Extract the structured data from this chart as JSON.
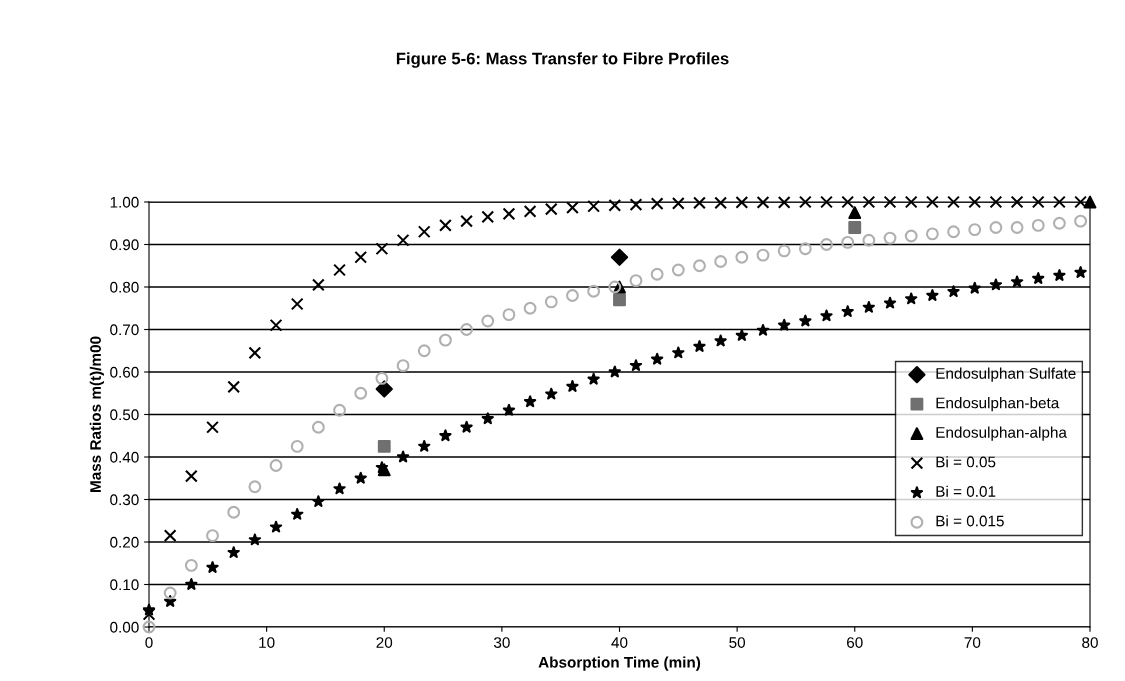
{
  "chart_data": {
    "type": "scatter",
    "title": "Figure 5-6: Mass Transfer to Fibre Profiles",
    "xlabel": "Absorption Time (min)",
    "ylabel": "Mass Ratios m(t)/m00",
    "xlim": [
      0,
      80
    ],
    "xticks": [
      0,
      10,
      20,
      30,
      40,
      50,
      60,
      70,
      80
    ],
    "ylim": [
      0,
      1
    ],
    "yticks": [
      {
        "value": 0,
        "label": "0.00"
      },
      {
        "value": 0.1,
        "label": "0.10"
      },
      {
        "value": 0.2,
        "label": "0.20"
      },
      {
        "value": 0.3,
        "label": "0.30"
      },
      {
        "value": 0.4,
        "label": "0.40"
      },
      {
        "value": 0.5,
        "label": "0.50"
      },
      {
        "value": 0.6,
        "label": "0.60"
      },
      {
        "value": 0.7,
        "label": "0.70"
      },
      {
        "value": 0.8,
        "label": "0.80"
      },
      {
        "value": 0.9,
        "label": "0.90"
      },
      {
        "value": 1,
        "label": "1.00"
      }
    ],
    "grid": "y",
    "legend": "right",
    "series": [
      {
        "name": "Endosulphan Sulfate",
        "color": "#000000",
        "marker": "diamond",
        "x": [
          20,
          40
        ],
        "values": [
          0.56,
          0.87
        ]
      },
      {
        "name": "Endosulphan-beta",
        "color": "#707070",
        "marker": "square",
        "x": [
          20,
          40,
          60
        ],
        "values": [
          0.425,
          0.77,
          0.94
        ]
      },
      {
        "name": "Endosulphan-alpha",
        "color": "#000000",
        "marker": "triangle",
        "x": [
          20,
          40,
          60,
          80
        ],
        "values": [
          0.37,
          0.8,
          0.975,
          1.0
        ]
      },
      {
        "name": "Bi = 0.05",
        "color": "#000000",
        "marker": "cross",
        "x": [
          0,
          1.8,
          3.6,
          5.4,
          7.2,
          9,
          10.8,
          12.6,
          14.4,
          16.2,
          18,
          19.8,
          21.6,
          23.4,
          25.2,
          27,
          28.8,
          30.6,
          32.4,
          34.2,
          36,
          37.8,
          39.6,
          41.4,
          43.2,
          45,
          46.8,
          48.6,
          50.4,
          52.2,
          54,
          55.8,
          57.6,
          59.4,
          61.2,
          63,
          64.8,
          66.6,
          68.4,
          70.2,
          72,
          73.8,
          75.6,
          77.4,
          79.2
        ],
        "values": [
          0.03,
          0.215,
          0.355,
          0.47,
          0.565,
          0.645,
          0.71,
          0.76,
          0.805,
          0.84,
          0.87,
          0.89,
          0.91,
          0.93,
          0.945,
          0.955,
          0.965,
          0.972,
          0.978,
          0.983,
          0.987,
          0.99,
          0.992,
          0.994,
          0.996,
          0.997,
          0.998,
          0.998,
          0.999,
          0.999,
          0.999,
          1.0,
          1.0,
          1.0,
          1.0,
          1.0,
          1.0,
          1.0,
          1.0,
          1.0,
          1.0,
          1.0,
          1.0,
          1.0,
          1.0
        ]
      },
      {
        "name": "Bi = 0.01",
        "color": "#000000",
        "marker": "star",
        "x": [
          0,
          1.8,
          3.6,
          5.4,
          7.2,
          9,
          10.8,
          12.6,
          14.4,
          16.2,
          18,
          19.8,
          21.6,
          23.4,
          25.2,
          27,
          28.8,
          30.6,
          32.4,
          34.2,
          36,
          37.8,
          39.6,
          41.4,
          43.2,
          45,
          46.8,
          48.6,
          50.4,
          52.2,
          54,
          55.8,
          57.6,
          59.4,
          61.2,
          63,
          64.8,
          66.6,
          68.4,
          70.2,
          72,
          73.8,
          75.6,
          77.4,
          79.2
        ],
        "values": [
          0.04,
          0.06,
          0.1,
          0.14,
          0.175,
          0.205,
          0.235,
          0.265,
          0.295,
          0.325,
          0.35,
          0.375,
          0.4,
          0.425,
          0.45,
          0.47,
          0.49,
          0.51,
          0.53,
          0.548,
          0.566,
          0.583,
          0.6,
          0.615,
          0.63,
          0.645,
          0.66,
          0.673,
          0.686,
          0.698,
          0.71,
          0.72,
          0.732,
          0.742,
          0.752,
          0.762,
          0.772,
          0.78,
          0.789,
          0.797,
          0.805,
          0.812,
          0.82,
          0.827,
          0.834
        ]
      },
      {
        "name": "Bi = 0.015",
        "color": "#b0b0b0",
        "marker": "circle",
        "x": [
          0,
          1.8,
          3.6,
          5.4,
          7.2,
          9,
          10.8,
          12.6,
          14.4,
          16.2,
          18,
          19.8,
          21.6,
          23.4,
          25.2,
          27,
          28.8,
          30.6,
          32.4,
          34.2,
          36,
          37.8,
          39.6,
          41.4,
          43.2,
          45,
          46.8,
          48.6,
          50.4,
          52.2,
          54,
          55.8,
          57.6,
          59.4,
          61.2,
          63,
          64.8,
          66.6,
          68.4,
          70.2,
          72,
          73.8,
          75.6,
          77.4,
          79.2
        ],
        "values": [
          0.0,
          0.08,
          0.145,
          0.215,
          0.27,
          0.33,
          0.38,
          0.425,
          0.47,
          0.51,
          0.55,
          0.585,
          0.615,
          0.65,
          0.675,
          0.7,
          0.72,
          0.735,
          0.75,
          0.765,
          0.78,
          0.79,
          0.8,
          0.815,
          0.83,
          0.84,
          0.85,
          0.86,
          0.87,
          0.875,
          0.885,
          0.89,
          0.9,
          0.905,
          0.91,
          0.915,
          0.92,
          0.925,
          0.93,
          0.935,
          0.94,
          0.94,
          0.945,
          0.95,
          0.955
        ]
      }
    ]
  }
}
